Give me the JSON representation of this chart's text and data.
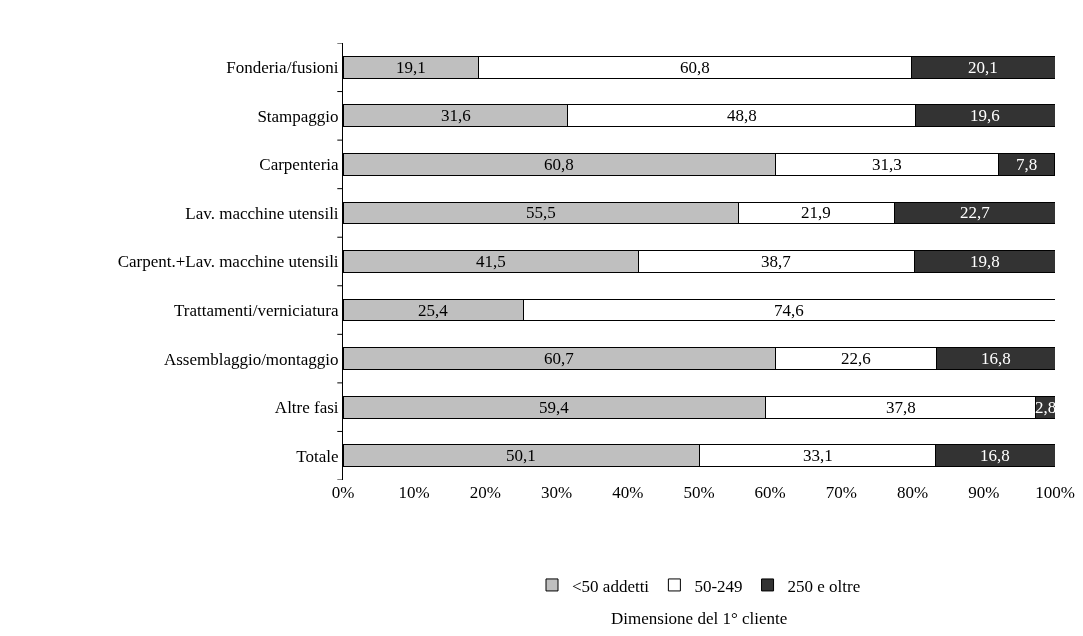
{
  "chart_data": {
    "type": "bar",
    "orientation": "horizontal",
    "stacked": true,
    "categories": [
      "Fonderia/fusioni",
      "Stampaggio",
      "Carpenteria",
      "Lav. macchine utensili",
      "Carpent.+Lav. macchine utensili",
      "Trattamenti/verniciatura",
      "Assemblaggio/montaggio",
      "Altre fasi",
      "Totale"
    ],
    "series": [
      {
        "name": "<50 addetti",
        "color": "#bfbfbf",
        "values": [
          19.1,
          31.6,
          60.8,
          55.5,
          41.5,
          25.4,
          60.7,
          59.4,
          50.1
        ],
        "value_labels": [
          "19,1",
          "31,6",
          "60,8",
          "55,5",
          "41,5",
          "25,4",
          "60,7",
          "59,4",
          "50,1"
        ]
      },
      {
        "name": "50-249",
        "color": "#ffffff",
        "values": [
          60.8,
          48.8,
          31.3,
          21.9,
          38.7,
          74.6,
          22.6,
          37.8,
          33.1
        ],
        "value_labels": [
          "60,8",
          "48,8",
          "31,3",
          "21,9",
          "38,7",
          "74,6",
          "22,6",
          "37,8",
          "33,1"
        ]
      },
      {
        "name": "250 e oltre",
        "color": "#333333",
        "values": [
          20.1,
          19.6,
          7.8,
          22.7,
          19.8,
          null,
          16.8,
          2.8,
          16.8
        ],
        "value_labels": [
          "20,1",
          "19,6",
          "7,8",
          "22,7",
          "19,8",
          null,
          "16,8",
          "2,8",
          "16,8"
        ]
      }
    ],
    "xlim": [
      0,
      100
    ],
    "xticks": [
      {
        "value": 0,
        "label": "0%"
      },
      {
        "value": 10,
        "label": "10%"
      },
      {
        "value": 20,
        "label": "20%"
      },
      {
        "value": 30,
        "label": "30%"
      },
      {
        "value": 40,
        "label": "40%"
      },
      {
        "value": 50,
        "label": "50%"
      },
      {
        "value": 60,
        "label": "60%"
      },
      {
        "value": 70,
        "label": "70%"
      },
      {
        "value": 80,
        "label": "80%"
      },
      {
        "value": 90,
        "label": "90%"
      },
      {
        "value": 100,
        "label": "100%"
      }
    ],
    "grid": false,
    "legend": "bottom",
    "legend_title": "Dimensione del 1° cliente"
  }
}
